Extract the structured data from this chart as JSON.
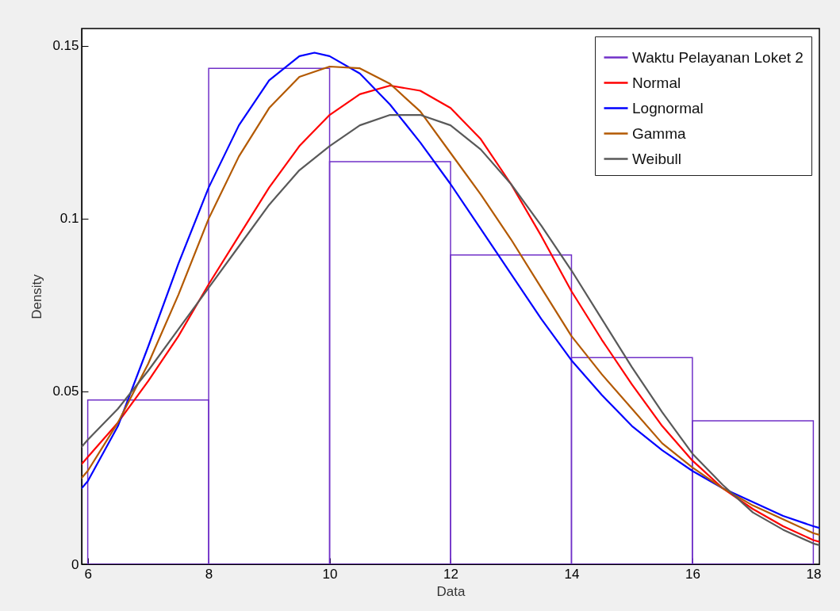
{
  "chart_data": {
    "type": "histogram",
    "xlabel": "Data",
    "ylabel": "Density",
    "bins": [
      6,
      8,
      10,
      12,
      14,
      16,
      18
    ],
    "xlim": [
      5.9,
      18.1
    ],
    "ylim": [
      0,
      0.155
    ],
    "xticks": [
      6,
      8,
      10,
      12,
      14,
      16,
      18
    ],
    "yticks": [
      0,
      0.05,
      0.1,
      0.15
    ],
    "legend": "top right",
    "series": [
      {
        "name": "Waktu Pelayanan Loket 2",
        "color": "#7030c8",
        "values": [
          0.0475,
          0.1435,
          0.1165,
          0.0895,
          0.0598,
          0.0415
        ]
      },
      {
        "name": "Normal",
        "type": "line",
        "color": "#ff0000",
        "x": [
          5.9,
          6,
          6.5,
          7,
          7.5,
          8,
          8.5,
          9,
          9.5,
          10,
          10.5,
          11,
          11.5,
          12,
          12.5,
          13,
          13.5,
          14,
          14.5,
          15,
          15.5,
          16,
          16.5,
          17,
          17.5,
          18,
          18.1
        ],
        "values": [
          0.029,
          0.031,
          0.041,
          0.053,
          0.066,
          0.081,
          0.095,
          0.109,
          0.121,
          0.13,
          0.136,
          0.1385,
          0.137,
          0.132,
          0.123,
          0.11,
          0.095,
          0.079,
          0.065,
          0.052,
          0.04,
          0.03,
          0.022,
          0.016,
          0.011,
          0.007,
          0.0065
        ]
      },
      {
        "name": "Lognormal",
        "type": "line",
        "color": "#0000ff",
        "x": [
          5.9,
          6,
          6.5,
          7,
          7.5,
          8,
          8.5,
          9,
          9.5,
          9.75,
          10,
          10.5,
          11,
          11.5,
          12,
          12.5,
          13,
          13.5,
          14,
          14.5,
          15,
          15.5,
          16,
          16.5,
          17,
          17.5,
          18,
          18.1
        ],
        "values": [
          0.022,
          0.024,
          0.04,
          0.063,
          0.087,
          0.109,
          0.127,
          0.14,
          0.147,
          0.148,
          0.147,
          0.142,
          0.133,
          0.122,
          0.11,
          0.097,
          0.084,
          0.071,
          0.059,
          0.049,
          0.04,
          0.033,
          0.027,
          0.022,
          0.018,
          0.014,
          0.011,
          0.0105
        ]
      },
      {
        "name": "Gamma",
        "type": "line",
        "color": "#b35900",
        "x": [
          5.9,
          6,
          6.5,
          7,
          7.5,
          8,
          8.5,
          9,
          9.5,
          10,
          10.5,
          11,
          11.5,
          12,
          12.5,
          13,
          13.5,
          14,
          14.5,
          15,
          15.5,
          16,
          16.5,
          17,
          17.5,
          18,
          18.1
        ],
        "values": [
          0.025,
          0.027,
          0.041,
          0.058,
          0.078,
          0.1,
          0.118,
          0.132,
          0.141,
          0.144,
          0.1435,
          0.139,
          0.131,
          0.119,
          0.107,
          0.094,
          0.08,
          0.066,
          0.055,
          0.045,
          0.035,
          0.028,
          0.022,
          0.017,
          0.013,
          0.009,
          0.0085
        ]
      },
      {
        "name": "Weibull",
        "type": "line",
        "color": "#595959",
        "x": [
          5.9,
          6,
          6.5,
          7,
          7.5,
          8,
          8.5,
          9,
          9.5,
          10,
          10.5,
          11,
          11.5,
          12,
          12.5,
          13,
          13.5,
          14,
          14.5,
          15,
          15.5,
          16,
          16.5,
          17,
          17.5,
          18,
          18.1
        ],
        "values": [
          0.034,
          0.036,
          0.045,
          0.056,
          0.068,
          0.08,
          0.092,
          0.104,
          0.114,
          0.121,
          0.127,
          0.13,
          0.13,
          0.127,
          0.12,
          0.11,
          0.098,
          0.085,
          0.071,
          0.057,
          0.044,
          0.032,
          0.023,
          0.015,
          0.01,
          0.006,
          0.0055
        ]
      }
    ]
  }
}
